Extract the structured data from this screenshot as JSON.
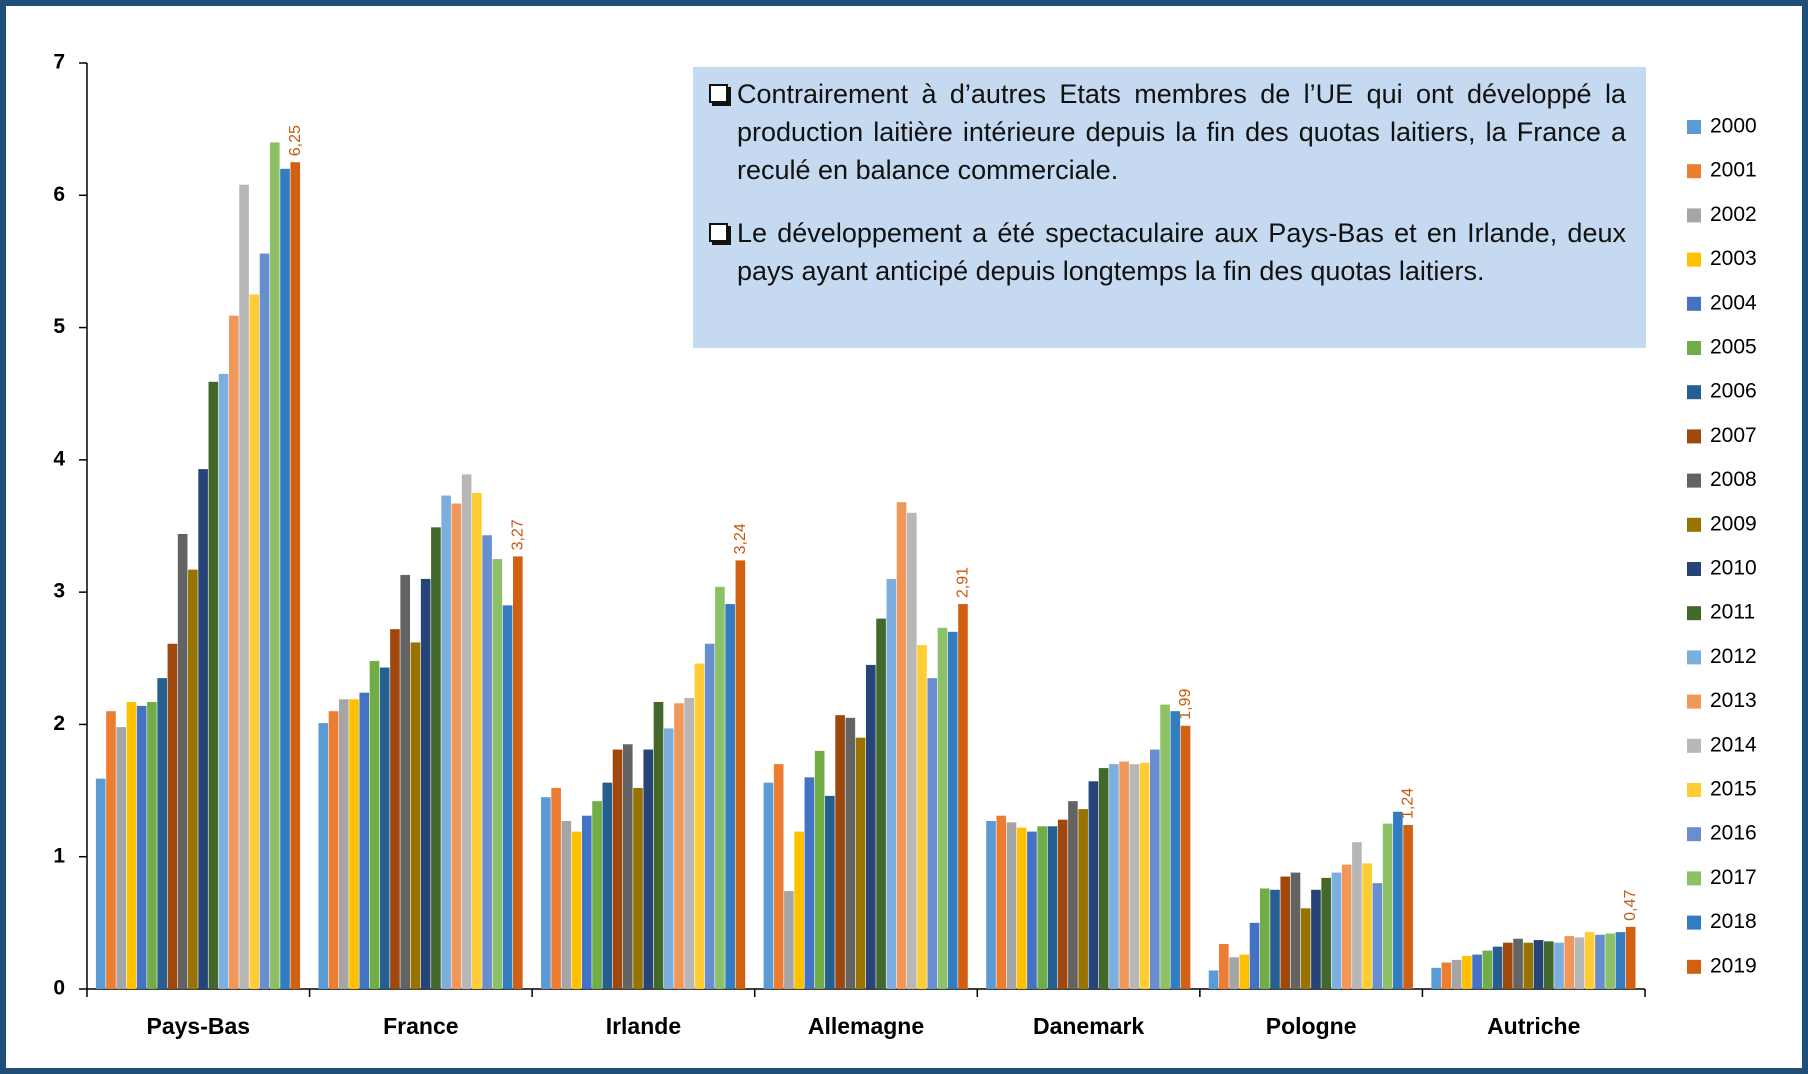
{
  "chart_data": {
    "type": "bar",
    "categories": [
      "Pays-Bas",
      "France",
      "Irlande",
      "Allemagne",
      "Danemark",
      "Pologne",
      "Autriche"
    ],
    "series": [
      {
        "name": "2000",
        "color": "#5B9BD5",
        "values": [
          1.59,
          2.01,
          1.45,
          1.56,
          1.27,
          0.14,
          0.16
        ]
      },
      {
        "name": "2001",
        "color": "#ED7D31",
        "values": [
          2.1,
          2.1,
          1.52,
          1.7,
          1.31,
          0.34,
          0.2
        ]
      },
      {
        "name": "2002",
        "color": "#A5A5A5",
        "values": [
          1.98,
          2.19,
          1.27,
          0.74,
          1.26,
          0.24,
          0.22
        ]
      },
      {
        "name": "2003",
        "color": "#FFC000",
        "values": [
          2.17,
          2.19,
          1.19,
          1.19,
          1.22,
          0.26,
          0.25
        ]
      },
      {
        "name": "2004",
        "color": "#4472C4",
        "values": [
          2.14,
          2.24,
          1.31,
          1.6,
          1.19,
          0.5,
          0.26
        ]
      },
      {
        "name": "2005",
        "color": "#70AD47",
        "values": [
          2.17,
          2.48,
          1.42,
          1.8,
          1.23,
          0.76,
          0.29
        ]
      },
      {
        "name": "2006",
        "color": "#255E91",
        "values": [
          2.35,
          2.43,
          1.56,
          1.46,
          1.23,
          0.75,
          0.32
        ]
      },
      {
        "name": "2007",
        "color": "#9E480E",
        "values": [
          2.61,
          2.72,
          1.81,
          2.07,
          1.28,
          0.85,
          0.35
        ]
      },
      {
        "name": "2008",
        "color": "#636363",
        "values": [
          3.44,
          3.13,
          1.85,
          2.05,
          1.42,
          0.88,
          0.38
        ]
      },
      {
        "name": "2009",
        "color": "#997300",
        "values": [
          3.17,
          2.62,
          1.52,
          1.9,
          1.36,
          0.61,
          0.35
        ]
      },
      {
        "name": "2010",
        "color": "#264478",
        "values": [
          3.93,
          3.1,
          1.81,
          2.45,
          1.57,
          0.75,
          0.37
        ]
      },
      {
        "name": "2011",
        "color": "#43682B",
        "values": [
          4.59,
          3.49,
          2.17,
          2.8,
          1.67,
          0.84,
          0.36
        ]
      },
      {
        "name": "2012",
        "color": "#7CAFDD",
        "values": [
          4.65,
          3.73,
          1.97,
          3.1,
          1.7,
          0.88,
          0.35
        ]
      },
      {
        "name": "2013",
        "color": "#F1975A",
        "values": [
          5.09,
          3.67,
          2.16,
          3.68,
          1.72,
          0.94,
          0.4
        ]
      },
      {
        "name": "2014",
        "color": "#B7B7B7",
        "values": [
          6.08,
          3.89,
          2.2,
          3.6,
          1.7,
          1.11,
          0.39
        ]
      },
      {
        "name": "2015",
        "color": "#FFCD33",
        "values": [
          5.25,
          3.75,
          2.46,
          2.6,
          1.71,
          0.95,
          0.43
        ]
      },
      {
        "name": "2016",
        "color": "#698ED0",
        "values": [
          5.56,
          3.43,
          2.61,
          2.35,
          1.81,
          0.8,
          0.41
        ]
      },
      {
        "name": "2017",
        "color": "#8CC168",
        "values": [
          6.4,
          3.25,
          3.04,
          2.73,
          2.15,
          1.25,
          0.42
        ]
      },
      {
        "name": "2018",
        "color": "#327DC2",
        "values": [
          6.2,
          2.9,
          2.91,
          2.7,
          2.1,
          1.34,
          0.43
        ]
      },
      {
        "name": "2019",
        "color": "#D26012",
        "values": [
          6.25,
          3.27,
          3.24,
          2.91,
          1.99,
          1.24,
          0.47
        ],
        "value_labels": [
          "6,25",
          "3,27",
          "3,24",
          "2,91",
          "1,99",
          "1,24",
          "0,47"
        ]
      }
    ],
    "ylim": [
      0,
      7
    ],
    "yticks": [
      0,
      1,
      2,
      3,
      4,
      5,
      6,
      7
    ],
    "legend": "right",
    "annotations": [
      "Contrairement à d’autres Etats membres de l’UE qui ont développé la production laitière intérieure depuis la fin des quotas laitiers, la France a reculé en balance commerciale.",
      "Le développement a été spectaculaire aux Pays-Bas et en Irlande, deux pays ayant anticipé depuis longtemps la fin des quotas laitiers."
    ]
  }
}
